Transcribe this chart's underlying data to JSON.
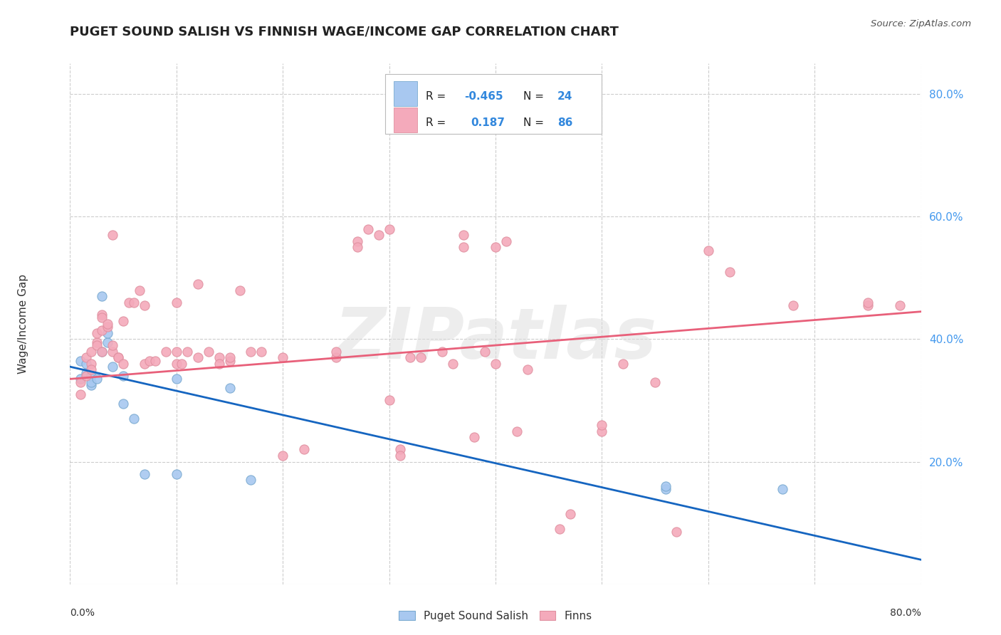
{
  "title": "PUGET SOUND SALISH VS FINNISH WAGE/INCOME GAP CORRELATION CHART",
  "source": "Source: ZipAtlas.com",
  "ylabel": "Wage/Income Gap",
  "watermark": "ZIPatlas",
  "legend_R": [
    "-0.465",
    "0.187"
  ],
  "legend_N": [
    "24",
    "86"
  ],
  "blue_color": "#A8C8F0",
  "pink_color": "#F4AABB",
  "blue_line_color": "#1565C0",
  "pink_line_color": "#E8607A",
  "blue_marker_edge": "#7AAAD0",
  "pink_marker_edge": "#E090A0",
  "x_min": 0.0,
  "x_max": 0.8,
  "y_min": 0.0,
  "y_max": 0.85,
  "y_ticks": [
    0.2,
    0.4,
    0.6,
    0.8
  ],
  "y_tick_labels": [
    "20.0%",
    "40.0%",
    "60.0%",
    "80.0%"
  ],
  "blue_points": [
    [
      0.01,
      0.365
    ],
    [
      0.01,
      0.335
    ],
    [
      0.015,
      0.345
    ],
    [
      0.015,
      0.36
    ],
    [
      0.02,
      0.325
    ],
    [
      0.02,
      0.34
    ],
    [
      0.02,
      0.33
    ],
    [
      0.025,
      0.335
    ],
    [
      0.03,
      0.47
    ],
    [
      0.03,
      0.38
    ],
    [
      0.035,
      0.395
    ],
    [
      0.035,
      0.41
    ],
    [
      0.04,
      0.355
    ],
    [
      0.05,
      0.34
    ],
    [
      0.05,
      0.295
    ],
    [
      0.06,
      0.27
    ],
    [
      0.07,
      0.18
    ],
    [
      0.1,
      0.335
    ],
    [
      0.1,
      0.18
    ],
    [
      0.15,
      0.32
    ],
    [
      0.17,
      0.17
    ],
    [
      0.56,
      0.155
    ],
    [
      0.56,
      0.16
    ],
    [
      0.67,
      0.155
    ]
  ],
  "pink_points": [
    [
      0.01,
      0.31
    ],
    [
      0.01,
      0.33
    ],
    [
      0.015,
      0.34
    ],
    [
      0.015,
      0.37
    ],
    [
      0.02,
      0.36
    ],
    [
      0.02,
      0.35
    ],
    [
      0.02,
      0.38
    ],
    [
      0.025,
      0.395
    ],
    [
      0.025,
      0.41
    ],
    [
      0.025,
      0.39
    ],
    [
      0.03,
      0.415
    ],
    [
      0.03,
      0.38
    ],
    [
      0.03,
      0.44
    ],
    [
      0.03,
      0.435
    ],
    [
      0.035,
      0.42
    ],
    [
      0.035,
      0.425
    ],
    [
      0.04,
      0.57
    ],
    [
      0.04,
      0.38
    ],
    [
      0.04,
      0.39
    ],
    [
      0.045,
      0.37
    ],
    [
      0.045,
      0.37
    ],
    [
      0.05,
      0.43
    ],
    [
      0.05,
      0.36
    ],
    [
      0.055,
      0.46
    ],
    [
      0.06,
      0.46
    ],
    [
      0.065,
      0.48
    ],
    [
      0.07,
      0.455
    ],
    [
      0.07,
      0.36
    ],
    [
      0.075,
      0.365
    ],
    [
      0.08,
      0.365
    ],
    [
      0.09,
      0.38
    ],
    [
      0.1,
      0.38
    ],
    [
      0.1,
      0.36
    ],
    [
      0.1,
      0.46
    ],
    [
      0.105,
      0.36
    ],
    [
      0.11,
      0.38
    ],
    [
      0.12,
      0.37
    ],
    [
      0.12,
      0.49
    ],
    [
      0.13,
      0.38
    ],
    [
      0.14,
      0.37
    ],
    [
      0.14,
      0.36
    ],
    [
      0.15,
      0.365
    ],
    [
      0.15,
      0.37
    ],
    [
      0.16,
      0.48
    ],
    [
      0.17,
      0.38
    ],
    [
      0.18,
      0.38
    ],
    [
      0.2,
      0.37
    ],
    [
      0.2,
      0.21
    ],
    [
      0.22,
      0.22
    ],
    [
      0.25,
      0.37
    ],
    [
      0.25,
      0.38
    ],
    [
      0.27,
      0.56
    ],
    [
      0.27,
      0.55
    ],
    [
      0.28,
      0.58
    ],
    [
      0.29,
      0.57
    ],
    [
      0.3,
      0.58
    ],
    [
      0.3,
      0.3
    ],
    [
      0.31,
      0.22
    ],
    [
      0.31,
      0.21
    ],
    [
      0.32,
      0.37
    ],
    [
      0.33,
      0.37
    ],
    [
      0.35,
      0.38
    ],
    [
      0.36,
      0.36
    ],
    [
      0.37,
      0.57
    ],
    [
      0.37,
      0.55
    ],
    [
      0.38,
      0.24
    ],
    [
      0.39,
      0.38
    ],
    [
      0.4,
      0.36
    ],
    [
      0.4,
      0.55
    ],
    [
      0.41,
      0.56
    ],
    [
      0.42,
      0.25
    ],
    [
      0.43,
      0.35
    ],
    [
      0.44,
      0.745
    ],
    [
      0.46,
      0.09
    ],
    [
      0.47,
      0.115
    ],
    [
      0.5,
      0.25
    ],
    [
      0.5,
      0.26
    ],
    [
      0.52,
      0.36
    ],
    [
      0.55,
      0.33
    ],
    [
      0.57,
      0.085
    ],
    [
      0.6,
      0.545
    ],
    [
      0.62,
      0.51
    ],
    [
      0.68,
      0.455
    ],
    [
      0.75,
      0.455
    ],
    [
      0.75,
      0.46
    ],
    [
      0.78,
      0.455
    ]
  ],
  "blue_line": [
    [
      0.0,
      0.355
    ],
    [
      0.8,
      0.04
    ]
  ],
  "pink_line": [
    [
      0.0,
      0.335
    ],
    [
      0.8,
      0.445
    ]
  ],
  "background_color": "#FFFFFF",
  "grid_color": "#CCCCCC"
}
